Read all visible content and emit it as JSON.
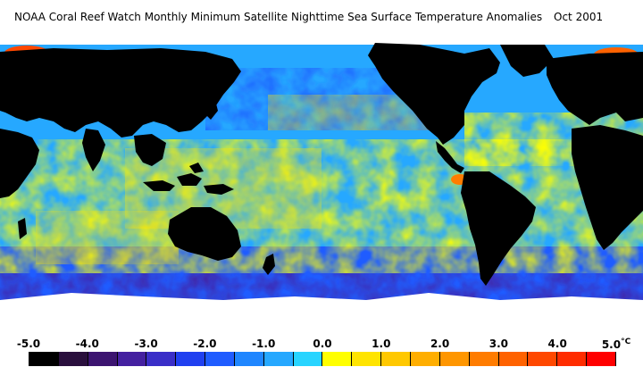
{
  "title": "NOAA Coral Reef Watch Monthly Minimum Satellite Nighttime Sea Surface Temperature Anomalies",
  "date": "Oct 2001",
  "legend": {
    "ticks": [
      "-5.0",
      "-4.0",
      "-3.0",
      "-2.0",
      "-1.0",
      "0.0",
      "1.0",
      "2.0",
      "3.0",
      "4.0",
      "5.0"
    ],
    "unit": "°C",
    "colors": [
      "#000000",
      "#2a0f3d",
      "#3c1470",
      "#4420a0",
      "#3a2ec8",
      "#2040f0",
      "#1f5cff",
      "#1f86ff",
      "#26a8ff",
      "#28d4ff",
      "#ffff00",
      "#ffe400",
      "#ffc800",
      "#ffae00",
      "#ff9600",
      "#ff7c00",
      "#ff6200",
      "#ff4800",
      "#ff2c00",
      "#ff0000"
    ]
  },
  "map": {
    "land_color": "#000000",
    "ice_color": "#ffffff",
    "ocean_palette": {
      "deep_cold": "#3c1470",
      "cold": "#2040f0",
      "cool": "#26a8ff",
      "neutral": "#28d4ff",
      "warm": "#ffff00",
      "hot": "#ffc800",
      "very_hot": "#ff6200"
    }
  }
}
